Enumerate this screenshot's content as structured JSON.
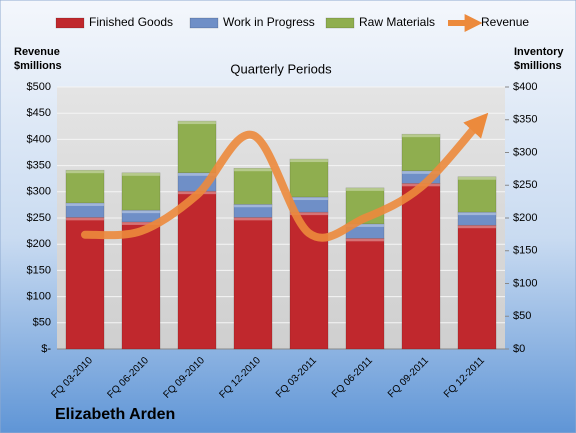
{
  "chart_data": {
    "type": "bar",
    "title": "Quarterly Periods",
    "subtitle": "Elizabeth Arden",
    "ylabel": [
      "Revenue",
      "$millions"
    ],
    "y2label": [
      "Inventory",
      "$millions"
    ],
    "categories": [
      "FQ 03-2010",
      "FQ 06-2010",
      "FQ 09-2010",
      "FQ 12-2010",
      "FQ 03-2011",
      "FQ 06-2011",
      "FQ 09-2011",
      "FQ 12-2011"
    ],
    "series": [
      {
        "name": "Finished Goods",
        "type": "bar",
        "axis": "y2",
        "color": "#c0282d",
        "values": [
          201,
          194,
          241,
          201,
          209,
          169,
          253,
          189
        ]
      },
      {
        "name": "Work in Progress",
        "type": "bar",
        "axis": "y2",
        "color": "#6f8fc7",
        "values": [
          22,
          18,
          28,
          20,
          23,
          22,
          19,
          20
        ]
      },
      {
        "name": "Raw Materials",
        "type": "bar",
        "axis": "y2",
        "color": "#8fae4f",
        "values": [
          50,
          57,
          79,
          55,
          58,
          55,
          56,
          54
        ]
      },
      {
        "name": "Revenue",
        "type": "line",
        "axis": "y",
        "color": "#ec8a3c",
        "values": [
          218,
          225,
          294,
          408,
          221,
          250,
          309,
          427
        ]
      }
    ],
    "stacked": true,
    "grid": true,
    "ylim": [
      0,
      500
    ],
    "yticks": [
      {
        "value": 0,
        "label": "$-"
      },
      {
        "value": 50,
        "label": "$50"
      },
      {
        "value": 100,
        "label": "$100"
      },
      {
        "value": 150,
        "label": "$150"
      },
      {
        "value": 200,
        "label": "$200"
      },
      {
        "value": 250,
        "label": "$250"
      },
      {
        "value": 300,
        "label": "$300"
      },
      {
        "value": 350,
        "label": "$350"
      },
      {
        "value": 400,
        "label": "$400"
      },
      {
        "value": 450,
        "label": "$450"
      },
      {
        "value": 500,
        "label": "$500"
      }
    ],
    "y2lim": [
      0,
      400
    ],
    "y2ticks": [
      {
        "value": 0,
        "label": "$0"
      },
      {
        "value": 50,
        "label": "$50"
      },
      {
        "value": 100,
        "label": "$100"
      },
      {
        "value": 150,
        "label": "$150"
      },
      {
        "value": 200,
        "label": "$200"
      },
      {
        "value": 250,
        "label": "$250"
      },
      {
        "value": 300,
        "label": "$300"
      },
      {
        "value": 350,
        "label": "$350"
      },
      {
        "value": 400,
        "label": "$400"
      }
    ],
    "legend": "top"
  }
}
